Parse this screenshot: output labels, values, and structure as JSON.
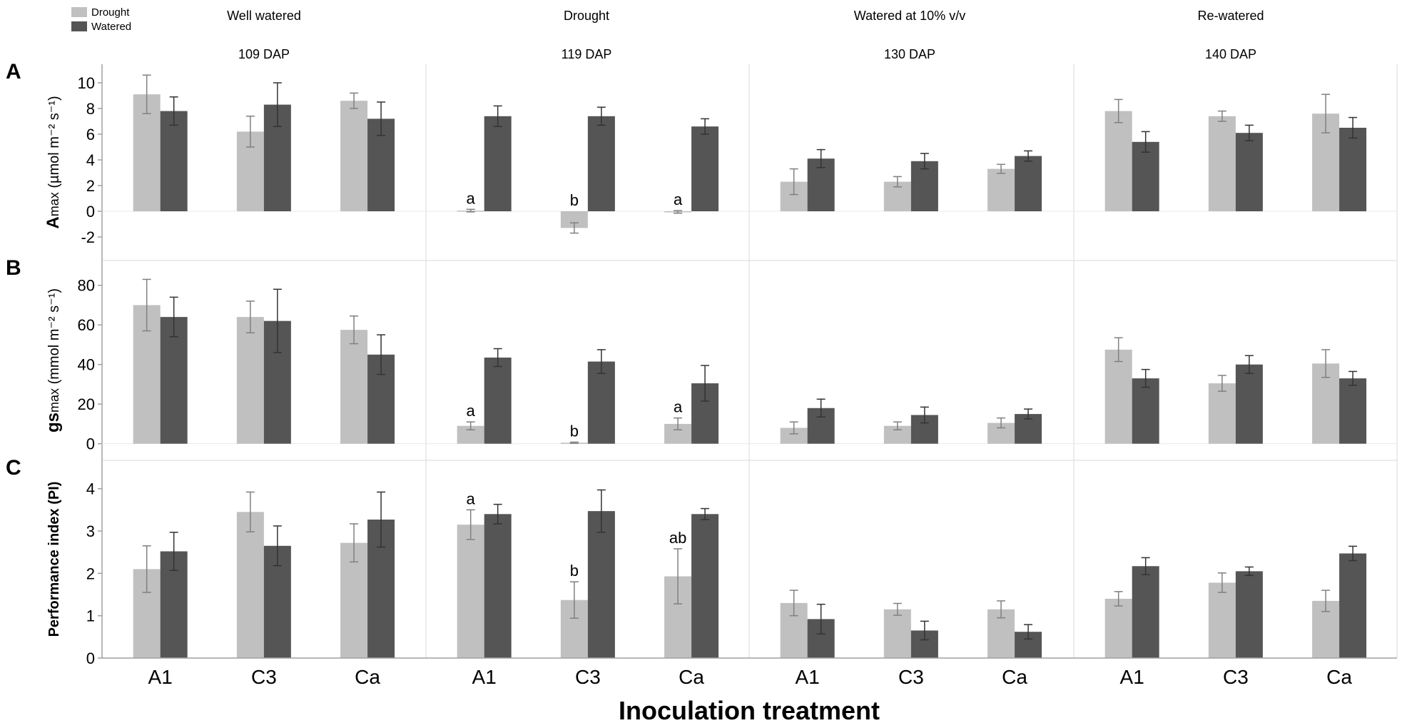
{
  "legend": {
    "items": [
      {
        "label": "Drought",
        "color": "#c0c0c0"
      },
      {
        "label": "Watered",
        "color": "#555555"
      }
    ]
  },
  "conditions": [
    {
      "name": "Well watered",
      "dap": "109 DAP"
    },
    {
      "name": "Drought",
      "dap": "119 DAP"
    },
    {
      "name": "Watered at 10% v/v",
      "dap": "130 DAP"
    },
    {
      "name": "Re-watered",
      "dap": "140 DAP"
    }
  ],
  "categories": [
    "A1",
    "C3",
    "Ca"
  ],
  "xlabel": "Inoculation treatment",
  "colors": {
    "drought": "#c0c0c0",
    "watered": "#555555",
    "drought_err": "#808080",
    "watered_err": "#333333",
    "grid": "#d8d8d8",
    "axis": "#a0a0a0"
  },
  "chart_data": [
    {
      "type": "bar",
      "panel": "A",
      "ylabel_main": "A",
      "ylabel_sub": "max",
      "ylabel_units": " (µmol m⁻² s⁻¹)",
      "ylim": [
        -3,
        11
      ],
      "yticks": [
        -2,
        0,
        2,
        4,
        6,
        8,
        10
      ],
      "series": [
        {
          "name": "Drought",
          "values": [
            [
              9.1,
              6.2,
              8.6
            ],
            [
              0.05,
              -1.3,
              -0.05
            ],
            [
              2.3,
              2.3,
              3.3
            ],
            [
              7.8,
              7.4,
              7.6
            ]
          ],
          "errors": [
            [
              1.5,
              1.2,
              0.6
            ],
            [
              0.1,
              0.4,
              0.1
            ],
            [
              1.0,
              0.4,
              0.35
            ],
            [
              0.9,
              0.4,
              1.5
            ]
          ]
        },
        {
          "name": "Watered",
          "values": [
            [
              7.8,
              8.3,
              7.2
            ],
            [
              7.4,
              7.4,
              6.6
            ],
            [
              4.1,
              3.9,
              4.3
            ],
            [
              5.4,
              6.1,
              6.5
            ]
          ],
          "errors": [
            [
              1.1,
              1.7,
              1.3
            ],
            [
              0.8,
              0.7,
              0.6
            ],
            [
              0.7,
              0.6,
              0.4
            ],
            [
              0.8,
              0.6,
              0.8
            ]
          ]
        }
      ],
      "annotations": [
        {
          "group": 1,
          "category": 0,
          "text": "a"
        },
        {
          "group": 1,
          "category": 1,
          "text": "b"
        },
        {
          "group": 1,
          "category": 2,
          "text": "a"
        }
      ]
    },
    {
      "type": "bar",
      "panel": "B",
      "ylabel_main": "gs",
      "ylabel_sub": "max",
      "ylabel_units": " (mmol m⁻² s⁻¹)",
      "ylim": [
        -3,
        90
      ],
      "yticks": [
        0,
        20,
        40,
        60,
        80
      ],
      "series": [
        {
          "name": "Drought",
          "values": [
            [
              70,
              64,
              57.5
            ],
            [
              9,
              0.5,
              10
            ],
            [
              8,
              9,
              10.5
            ],
            [
              47.5,
              30.5,
              40.5
            ]
          ],
          "errors": [
            [
              13,
              8,
              7
            ],
            [
              2,
              0.3,
              3
            ],
            [
              3,
              2,
              2.5
            ],
            [
              6,
              4,
              7
            ]
          ]
        },
        {
          "name": "Watered",
          "values": [
            [
              64,
              62,
              45
            ],
            [
              43.5,
              41.5,
              30.5
            ],
            [
              18,
              14.5,
              15
            ],
            [
              33,
              40,
              33
            ]
          ],
          "errors": [
            [
              10,
              16,
              10
            ],
            [
              4.5,
              6,
              9
            ],
            [
              4.5,
              4,
              2.5
            ],
            [
              4.5,
              4.5,
              3.5
            ]
          ]
        }
      ],
      "annotations": [
        {
          "group": 1,
          "category": 0,
          "text": "a"
        },
        {
          "group": 1,
          "category": 1,
          "text": "b"
        },
        {
          "group": 1,
          "category": 2,
          "text": "a"
        }
      ]
    },
    {
      "type": "bar",
      "panel": "C",
      "ylabel_main": "Performance index (PI)",
      "ylabel_sub": "",
      "ylabel_units": "",
      "ylim": [
        0,
        4.5
      ],
      "yticks": [
        0,
        1,
        2,
        3,
        4
      ],
      "series": [
        {
          "name": "Drought",
          "values": [
            [
              2.1,
              3.45,
              2.72
            ],
            [
              3.15,
              1.37,
              1.93
            ],
            [
              1.3,
              1.15,
              1.15
            ],
            [
              1.4,
              1.78,
              1.35
            ]
          ],
          "errors": [
            [
              0.55,
              0.47,
              0.45
            ],
            [
              0.35,
              0.43,
              0.65
            ],
            [
              0.3,
              0.14,
              0.2
            ],
            [
              0.17,
              0.23,
              0.25
            ]
          ]
        },
        {
          "name": "Watered",
          "values": [
            [
              2.52,
              2.65,
              3.27
            ],
            [
              3.4,
              3.47,
              3.4
            ],
            [
              0.92,
              0.65,
              0.62
            ],
            [
              2.17,
              2.05,
              2.47
            ]
          ],
          "errors": [
            [
              0.45,
              0.47,
              0.65
            ],
            [
              0.23,
              0.5,
              0.13
            ],
            [
              0.35,
              0.22,
              0.17
            ],
            [
              0.2,
              0.1,
              0.17
            ]
          ]
        }
      ],
      "annotations": [
        {
          "group": 1,
          "category": 0,
          "text": "a"
        },
        {
          "group": 1,
          "category": 1,
          "text": "b"
        },
        {
          "group": 1,
          "category": 2,
          "text": "ab"
        }
      ]
    }
  ]
}
